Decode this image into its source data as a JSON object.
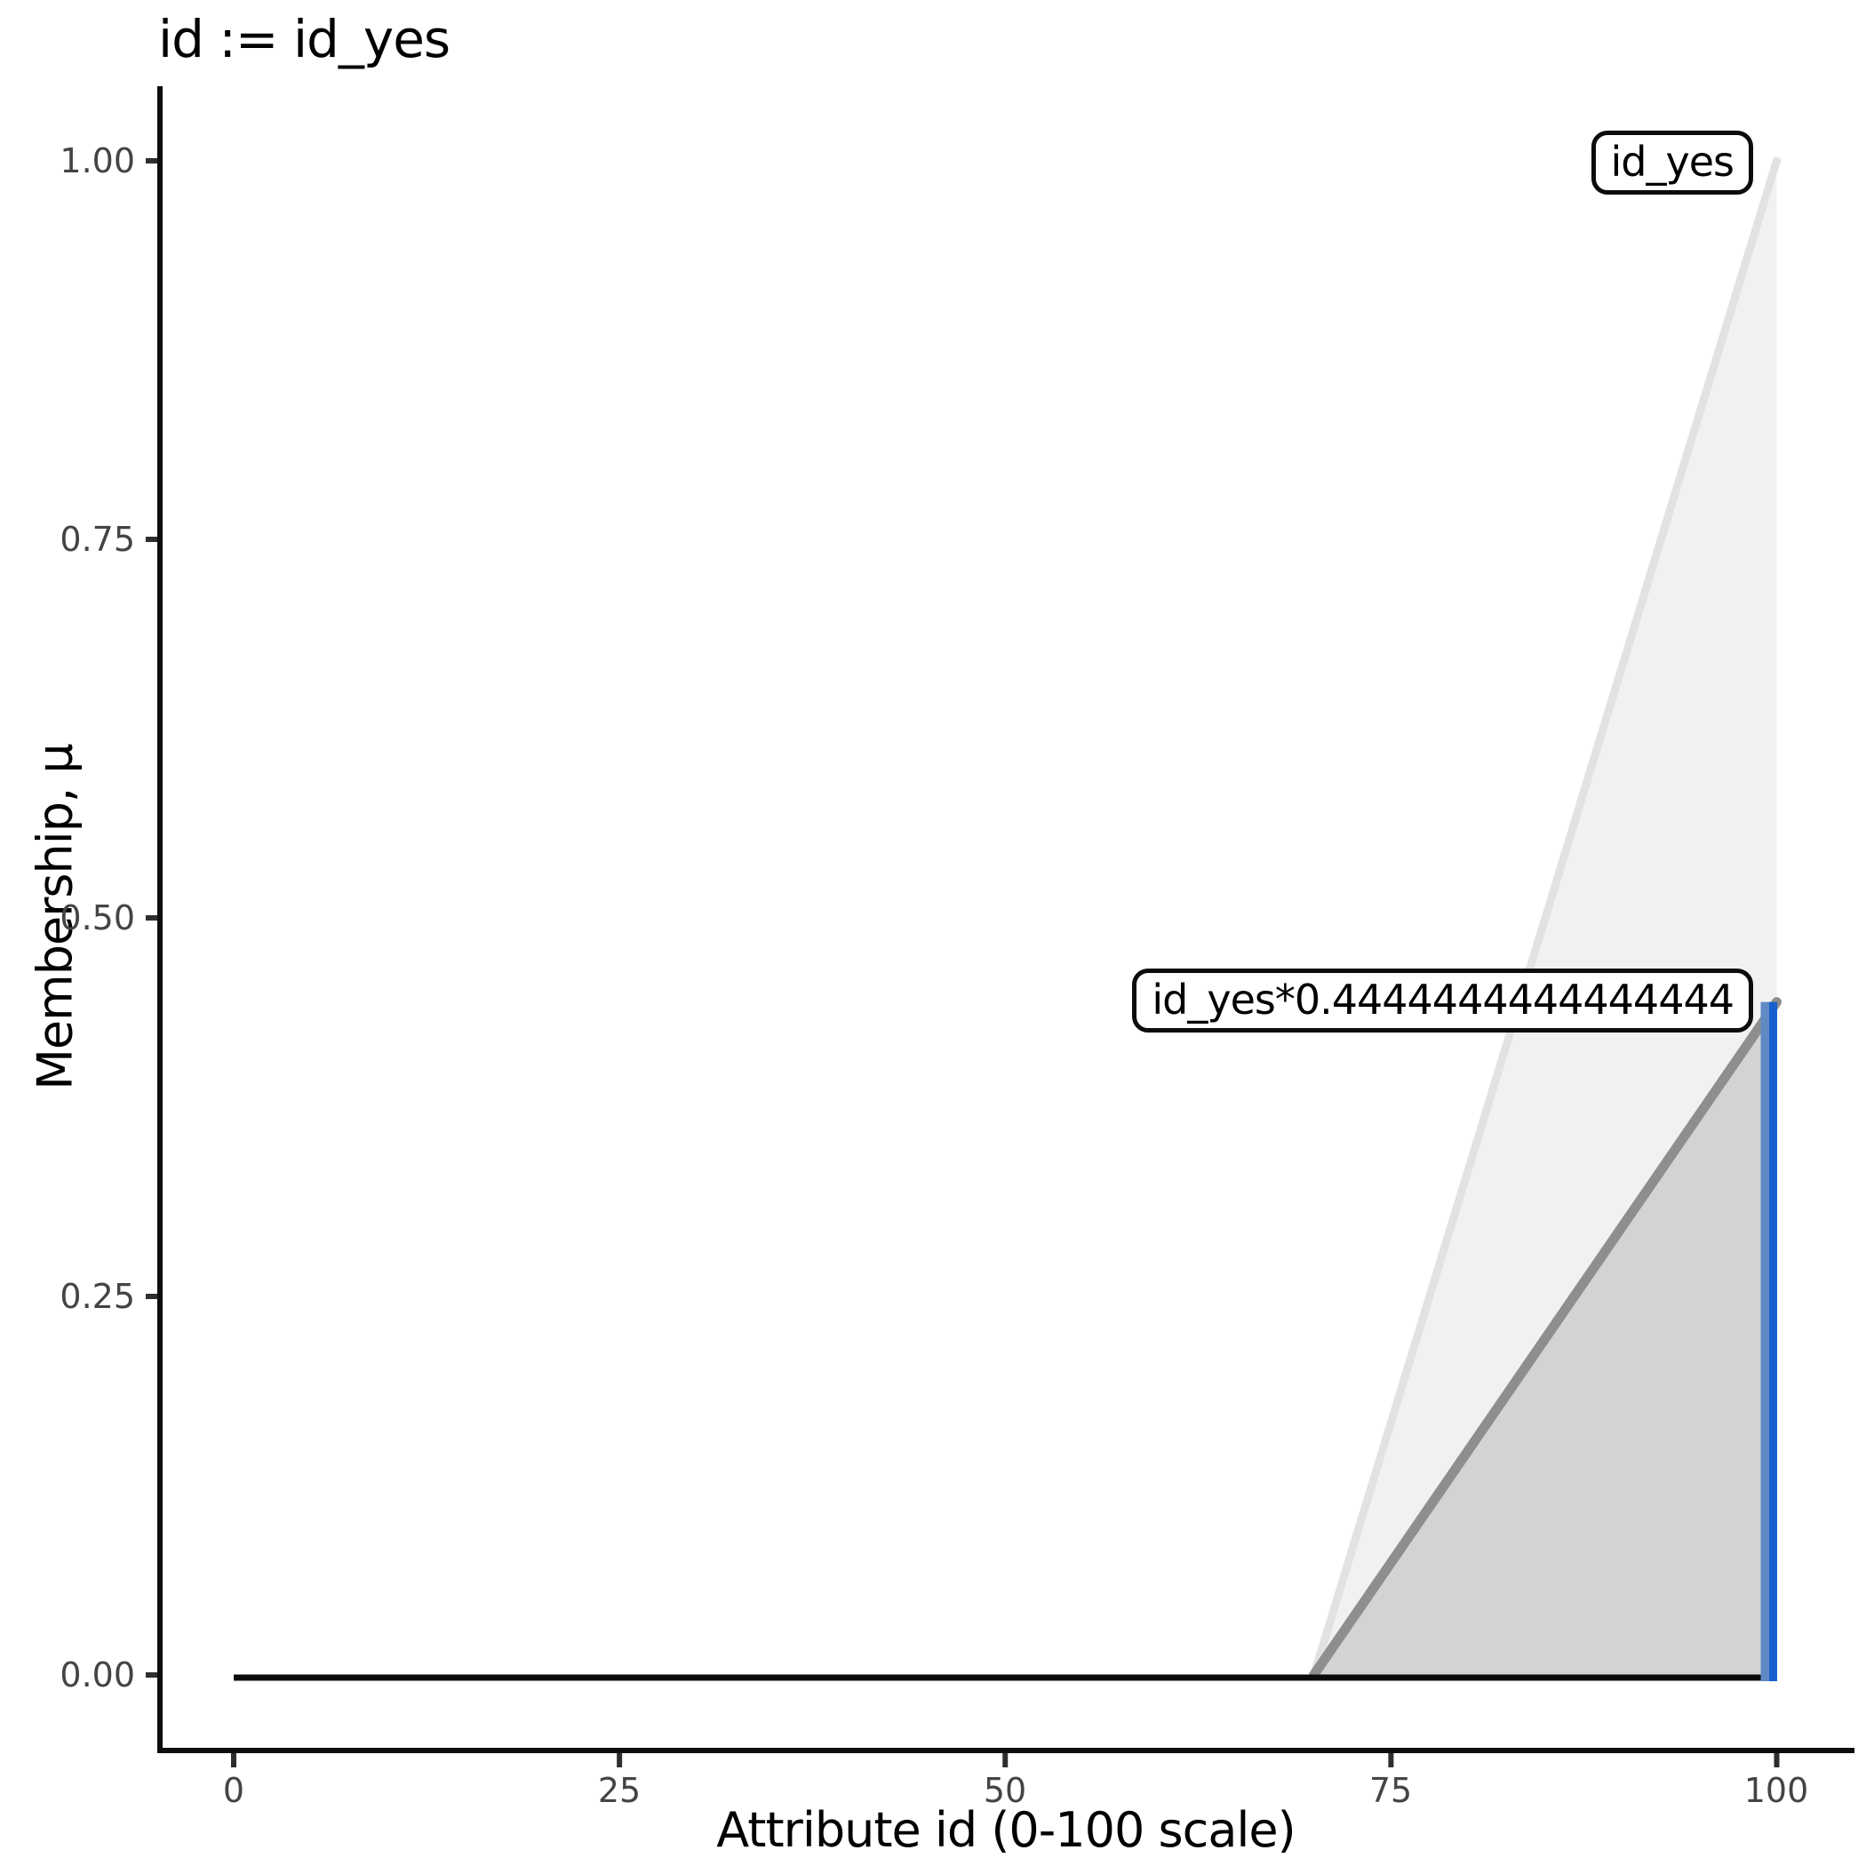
{
  "chart_data": {
    "type": "area",
    "title": "id := id_yes",
    "xlabel": "Attribute id (0-100 scale)",
    "ylabel": "Membership, μ",
    "xlim": [
      0,
      100
    ],
    "ylim": [
      0,
      1
    ],
    "grid": false,
    "background": "#ffffff",
    "x_ticks": [
      0,
      25,
      50,
      75,
      100
    ],
    "x_tick_labels": [
      "0",
      "25",
      "50",
      "75",
      "100"
    ],
    "y_ticks": [
      0,
      0.25,
      0.5,
      0.75,
      1
    ],
    "y_tick_labels": [
      "0.00",
      "0.25",
      "0.50",
      "0.75",
      "1.00"
    ],
    "series": [
      {
        "name": "id_yes",
        "kind": "membership",
        "label": "id_yes",
        "points": [
          [
            70,
            0
          ],
          [
            100,
            1
          ],
          [
            100,
            0
          ]
        ],
        "fill": "#F1F1F1",
        "edge": "#E2E2E2",
        "edge_width": 9
      },
      {
        "name": "id_yes_scaled",
        "kind": "membership",
        "label": "id_yes*0.4444444444444444",
        "points": [
          [
            70,
            0
          ],
          [
            100,
            0.4444444444444444
          ],
          [
            100,
            0
          ]
        ],
        "fill": "#D3D3D3",
        "edge": "#8E8E8E",
        "edge_width": 11
      },
      {
        "name": "baseline",
        "kind": "line",
        "points": [
          [
            0,
            0
          ],
          [
            100,
            0
          ]
        ],
        "color": "#0b0b0b",
        "width": 7
      },
      {
        "name": "activation",
        "kind": "vline",
        "x": 100,
        "y": [
          0,
          0.4444444444444444
        ],
        "color": "#1560CE",
        "color_muted": "#6189C4"
      }
    ],
    "annotations": [
      {
        "text": "id_yes",
        "x": 100,
        "y": 1
      },
      {
        "text": "id_yes*0.4444444444444444",
        "x": 100,
        "y": 0.4444444444444444
      }
    ]
  }
}
